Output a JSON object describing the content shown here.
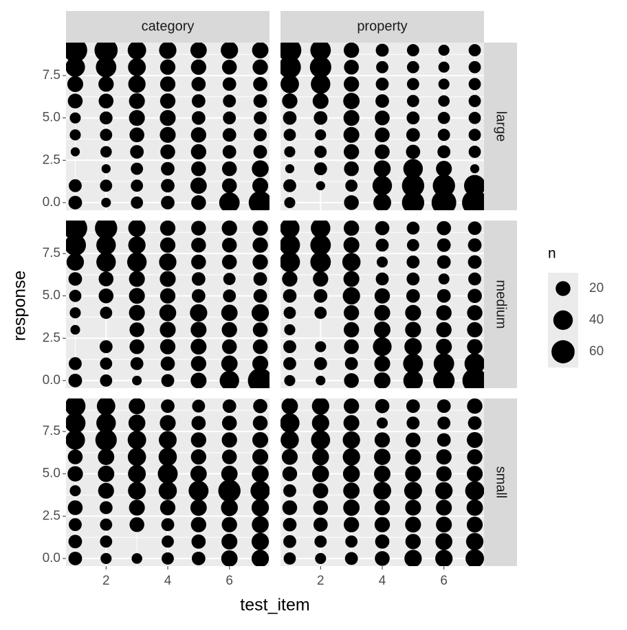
{
  "chart_data": {
    "type": "scatter",
    "x_label": "test_item",
    "y_label": "response",
    "x": [
      1,
      2,
      3,
      4,
      5,
      6,
      7
    ],
    "responses": [
      0,
      1,
      2,
      3,
      4,
      5,
      6,
      7,
      8,
      9
    ],
    "xlim": [
      0.7,
      7.3
    ],
    "ylim": [
      -0.45,
      9.45
    ],
    "xticks": [
      2,
      4,
      6
    ],
    "yticks": [
      {
        "value": 0,
        "label": "0.0"
      },
      {
        "value": 2.5,
        "label": "2.5"
      },
      {
        "value": 5,
        "label": "5.0"
      },
      {
        "value": 7.5,
        "label": "7.5"
      }
    ],
    "grid": true,
    "color": "#000000",
    "facet_cols": [
      "category",
      "property"
    ],
    "facet_rows": [
      "large",
      "medium",
      "small"
    ],
    "size_legend": {
      "title": "n",
      "values": [
        20,
        40,
        60
      ]
    },
    "panels": [
      {
        "n": [
          [
            16,
            6,
            12,
            16,
            20,
            45,
            60
          ],
          [
            14,
            12,
            12,
            16,
            26,
            20,
            24
          ],
          [
            null,
            5,
            12,
            16,
            20,
            20,
            28
          ],
          [
            5,
            10,
            16,
            20,
            22,
            16,
            16
          ],
          [
            9,
            12,
            20,
            24,
            22,
            16,
            14
          ],
          [
            9,
            14,
            24,
            24,
            16,
            14,
            14
          ],
          [
            20,
            20,
            24,
            22,
            16,
            14,
            16
          ],
          [
            24,
            22,
            30,
            22,
            18,
            16,
            18
          ],
          [
            40,
            45,
            32,
            22,
            22,
            20,
            22
          ],
          [
            65,
            60,
            35,
            30,
            26,
            30,
            26
          ]
        ]
      },
      {
        "n": [
          [
            9,
            null,
            20,
            32,
            55,
            70,
            75
          ],
          [
            14,
            5,
            12,
            40,
            55,
            55,
            50
          ],
          [
            5,
            14,
            20,
            28,
            40,
            24,
            5
          ],
          [
            9,
            12,
            22,
            20,
            18,
            14,
            12
          ],
          [
            12,
            9,
            24,
            20,
            16,
            12,
            12
          ],
          [
            16,
            16,
            24,
            20,
            14,
            12,
            12
          ],
          [
            22,
            24,
            26,
            16,
            12,
            10,
            12
          ],
          [
            35,
            40,
            22,
            14,
            12,
            9,
            12
          ],
          [
            55,
            50,
            20,
            12,
            12,
            9,
            12
          ],
          [
            60,
            45,
            22,
            14,
            12,
            9,
            12
          ]
        ]
      },
      {
        "n": [
          [
            16,
            12,
            6,
            14,
            24,
            40,
            70
          ],
          [
            14,
            12,
            14,
            18,
            22,
            26,
            24
          ],
          [
            null,
            14,
            20,
            22,
            24,
            20,
            20
          ],
          [
            6,
            null,
            20,
            24,
            24,
            22,
            20
          ],
          [
            9,
            12,
            24,
            28,
            30,
            26,
            30
          ],
          [
            12,
            20,
            24,
            22,
            16,
            14,
            16
          ],
          [
            16,
            20,
            24,
            24,
            16,
            12,
            16
          ],
          [
            30,
            40,
            40,
            30,
            20,
            20,
            22
          ],
          [
            50,
            40,
            30,
            22,
            20,
            20,
            22
          ],
          [
            65,
            55,
            30,
            22,
            20,
            22,
            22
          ]
        ]
      },
      {
        "n": [
          [
            9,
            6,
            20,
            26,
            40,
            50,
            70
          ],
          [
            14,
            14,
            14,
            24,
            42,
            45,
            45
          ],
          [
            14,
            9,
            20,
            36,
            30,
            24,
            22
          ],
          [
            9,
            null,
            22,
            26,
            24,
            22,
            22
          ],
          [
            12,
            12,
            22,
            24,
            24,
            22,
            22
          ],
          [
            16,
            16,
            30,
            22,
            16,
            16,
            18
          ],
          [
            22,
            22,
            24,
            14,
            14,
            9,
            14
          ],
          [
            45,
            45,
            34,
            9,
            14,
            16,
            16
          ],
          [
            45,
            45,
            24,
            14,
            12,
            16,
            16
          ],
          [
            40,
            40,
            22,
            18,
            14,
            18,
            16
          ]
        ]
      },
      {
        "n": [
          [
            16,
            9,
            8,
            12,
            16,
            26,
            30
          ],
          [
            16,
            12,
            null,
            12,
            18,
            24,
            30
          ],
          [
            14,
            12,
            20,
            14,
            22,
            22,
            28
          ],
          [
            20,
            14,
            24,
            22,
            26,
            28,
            30
          ],
          [
            9,
            24,
            32,
            34,
            42,
            55,
            40
          ],
          [
            22,
            26,
            32,
            42,
            26,
            26,
            28
          ],
          [
            20,
            26,
            34,
            34,
            22,
            20,
            24
          ],
          [
            40,
            50,
            35,
            32,
            22,
            22,
            24
          ],
          [
            45,
            40,
            28,
            24,
            18,
            20,
            20
          ],
          [
            45,
            35,
            26,
            16,
            14,
            16,
            18
          ]
        ]
      },
      {
        "n": [
          [
            12,
            9,
            14,
            20,
            30,
            30,
            35
          ],
          [
            14,
            12,
            12,
            18,
            22,
            28,
            30
          ],
          [
            16,
            18,
            22,
            22,
            24,
            24,
            24
          ],
          [
            20,
            20,
            26,
            22,
            24,
            24,
            26
          ],
          [
            14,
            22,
            26,
            32,
            32,
            30,
            38
          ],
          [
            20,
            28,
            28,
            26,
            24,
            22,
            24
          ],
          [
            24,
            28,
            30,
            26,
            24,
            22,
            22
          ],
          [
            34,
            38,
            30,
            22,
            20,
            16,
            24
          ],
          [
            40,
            30,
            24,
            9,
            14,
            14,
            16
          ],
          [
            26,
            30,
            22,
            18,
            16,
            16,
            22
          ]
        ]
      }
    ]
  }
}
